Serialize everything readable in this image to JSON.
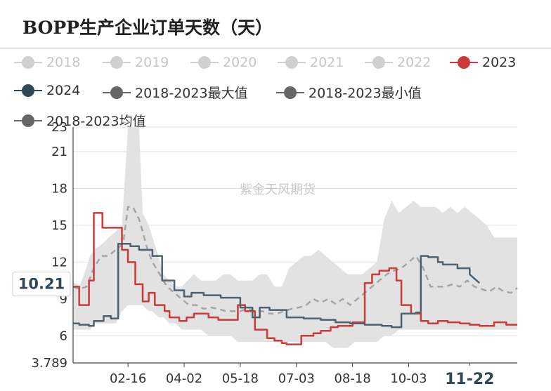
{
  "title": "BOPP生产企业订单天数（天）",
  "watermark": "紫金天风期货",
  "legend": [
    {
      "name": "2018",
      "color": "#d0d0d0",
      "active": false
    },
    {
      "name": "2019",
      "color": "#d0d0d0",
      "active": false
    },
    {
      "name": "2020",
      "color": "#d0d0d0",
      "active": false
    },
    {
      "name": "2021",
      "color": "#d0d0d0",
      "active": false
    },
    {
      "name": "2022",
      "color": "#d0d0d0",
      "active": false
    },
    {
      "name": "2023",
      "color": "#cc3b3b",
      "active": true
    },
    {
      "name": "2024",
      "color": "#2f4858",
      "active": true
    },
    {
      "name": "2018-2023最大值",
      "color": "#666666",
      "active": true
    },
    {
      "name": "2018-2023最小值",
      "color": "#666666",
      "active": true
    },
    {
      "name": "2018-2023均值",
      "color": "#666666",
      "active": true
    }
  ],
  "chart_data": {
    "type": "line",
    "title": "BOPP生产企业订单天数（天）",
    "ylim": [
      3.789,
      23
    ],
    "yticks": [
      "23",
      "21",
      "18",
      "15",
      "12",
      "9",
      "6",
      "3.789"
    ],
    "ytick_values": [
      23,
      21,
      18,
      15,
      12,
      9,
      6,
      3.789
    ],
    "xticks": [
      "02-16",
      "04-02",
      "05-18",
      "07-03",
      "08-18",
      "10-03",
      "11-22"
    ],
    "xtick_days": [
      46,
      92,
      138,
      184,
      230,
      276,
      326
    ],
    "xlim": [
      1,
      365
    ],
    "y_marker": "10.21",
    "x_marker": "11-22",
    "grid": "horizontal",
    "legend_position": "top",
    "band": {
      "x": [
        1,
        6,
        10,
        15,
        18,
        25,
        30,
        36,
        41,
        46,
        50,
        55,
        58,
        63,
        66,
        71,
        75,
        80,
        85,
        90,
        95,
        100,
        106,
        112,
        118,
        124,
        130,
        136,
        142,
        148,
        154,
        160,
        166,
        172,
        178,
        184,
        190,
        196,
        202,
        208,
        214,
        220,
        226,
        232,
        238,
        244,
        250,
        256,
        262,
        268,
        274,
        280,
        286,
        292,
        298,
        304,
        310,
        316,
        322,
        328,
        334,
        340,
        346,
        352,
        358,
        365
      ],
      "upper": [
        10.5,
        10,
        11,
        12.5,
        13,
        13.5,
        14,
        14.5,
        15,
        23,
        23,
        23,
        16,
        15,
        14,
        12.5,
        11,
        10.5,
        10,
        10,
        10.5,
        11,
        10.5,
        10.5,
        10.5,
        11,
        11,
        10.5,
        10.5,
        10.5,
        11,
        11,
        10,
        10,
        11.5,
        12,
        12.5,
        12.5,
        13,
        12.5,
        12,
        11.5,
        11,
        11,
        11,
        11.5,
        12,
        15.5,
        17,
        16,
        16.5,
        17,
        16.5,
        16.5,
        16.5,
        16,
        16.5,
        16,
        16.5,
        16,
        15.5,
        15,
        14,
        14,
        14,
        14
      ],
      "lower": [
        6.5,
        6.5,
        6.5,
        6.5,
        7,
        7,
        7,
        7,
        8,
        8.5,
        8.5,
        8.5,
        8.5,
        8,
        8,
        7.5,
        7.5,
        7,
        7,
        6.5,
        6.5,
        6.5,
        6.5,
        6,
        6,
        6,
        6,
        5.5,
        5.5,
        5.5,
        5.5,
        5.5,
        5.5,
        5.5,
        5.5,
        5.5,
        5.5,
        5.5,
        5.5,
        5.5,
        5,
        5,
        5,
        5.5,
        5.5,
        5.5,
        5.5,
        6,
        6,
        6.5,
        6.5,
        6.5,
        6.5,
        6.5,
        6.5,
        6.5,
        6.5,
        6.5,
        6.5,
        6.5,
        6.5,
        6.5,
        6.5,
        6.5,
        6.5,
        6.5
      ]
    },
    "series": [
      {
        "name": "2018-2023均值",
        "color": "#a6a6a6",
        "dashed": true,
        "x": [
          1,
          6,
          12,
          18,
          24,
          30,
          36,
          42,
          46,
          50,
          55,
          58,
          62,
          66,
          72,
          78,
          84,
          90,
          96,
          102,
          108,
          114,
          120,
          126,
          132,
          138,
          144,
          150,
          156,
          162,
          168,
          174,
          180,
          186,
          192,
          198,
          204,
          210,
          216,
          222,
          228,
          234,
          240,
          246,
          252,
          258,
          264,
          270,
          276,
          282,
          288,
          294,
          300,
          306,
          312,
          318,
          324,
          330,
          336,
          342,
          348,
          354,
          360,
          365
        ],
        "y": [
          10,
          9.8,
          10,
          11.5,
          12.5,
          12.5,
          13,
          13.5,
          16.5,
          16.5,
          15.5,
          14.5,
          13,
          12,
          11,
          10,
          9.5,
          9,
          8.5,
          8.5,
          8.2,
          8.3,
          8.2,
          8,
          8,
          8,
          8.2,
          8,
          8,
          7.8,
          7.8,
          8,
          8.2,
          8.3,
          8.5,
          9,
          8.7,
          9,
          8.6,
          9,
          8.5,
          9,
          9.5,
          10,
          10.5,
          11,
          11.3,
          11.5,
          12,
          12.5,
          11.5,
          10,
          10,
          10,
          10.2,
          10,
          10.5,
          10,
          9.8,
          9.6,
          10,
          9.6,
          9.5,
          9.9
        ]
      },
      {
        "name": "2023",
        "color": "#cc3b3b",
        "dashed": false,
        "x": [
          1,
          6,
          6,
          14,
          14,
          18,
          18,
          25,
          25,
          41,
          41,
          46,
          46,
          52,
          52,
          58,
          58,
          63,
          63,
          68,
          68,
          76,
          76,
          80,
          80,
          88,
          88,
          94,
          94,
          100,
          100,
          112,
          112,
          120,
          120,
          136,
          136,
          142,
          142,
          150,
          150,
          160,
          160,
          166,
          166,
          172,
          172,
          176,
          176,
          188,
          188,
          198,
          198,
          204,
          204,
          212,
          212,
          218,
          218,
          226,
          226,
          230,
          230,
          240,
          240,
          246,
          246,
          252,
          252,
          260,
          260,
          266,
          266,
          270,
          270,
          278,
          278,
          286,
          286,
          292,
          292,
          300,
          300,
          308,
          308,
          318,
          318,
          326,
          326,
          334,
          334,
          340,
          340,
          346,
          346,
          356,
          356,
          365
        ],
        "y": [
          10,
          10,
          8.5,
          8.5,
          10.5,
          10.5,
          16,
          16,
          14.8,
          14.8,
          13,
          13,
          12,
          12,
          10.2,
          10.2,
          8.8,
          8.8,
          9.5,
          9.5,
          8.5,
          8.5,
          8,
          8,
          7.5,
          7.5,
          7.2,
          7.2,
          7.5,
          7.5,
          7.8,
          7.8,
          7.5,
          7.5,
          7.3,
          7.3,
          8.5,
          8.5,
          8,
          8,
          6.5,
          6.5,
          5.8,
          5.8,
          5.6,
          5.6,
          5.4,
          5.4,
          5.3,
          5.3,
          6,
          6,
          6.2,
          6.2,
          6.4,
          6.4,
          6.7,
          6.7,
          6.8,
          6.8,
          6.8,
          6.8,
          7.1,
          7.1,
          10.3,
          10.3,
          11,
          11,
          11.3,
          11.3,
          11.5,
          11.5,
          10.5,
          10.5,
          8.5,
          8.5,
          7.8,
          7.8,
          7.2,
          7.2,
          7.0,
          7.0,
          7.2,
          7.2,
          7.1,
          7.1,
          7.0,
          7.0,
          6.9,
          6.9,
          6.8,
          6.8,
          6.8,
          6.8,
          7.1,
          7.1,
          6.9,
          6.9
        ]
      },
      {
        "name": "2024",
        "color": "#4d6170",
        "dashed": false,
        "x": [
          1,
          6,
          6,
          14,
          14,
          18,
          18,
          26,
          26,
          32,
          32,
          38,
          38,
          48,
          48,
          55,
          55,
          66,
          66,
          74,
          74,
          84,
          84,
          92,
          92,
          98,
          98,
          108,
          108,
          122,
          122,
          138,
          138,
          148,
          148,
          154,
          154,
          162,
          162,
          176,
          176,
          190,
          190,
          204,
          204,
          216,
          216,
          228,
          228,
          240,
          240,
          254,
          254,
          262,
          262,
          270,
          270,
          282,
          282,
          286,
          286,
          292,
          292,
          300,
          300,
          304,
          304,
          316,
          316,
          326,
          326,
          334
        ],
        "y": [
          7,
          7,
          6.9,
          6.9,
          6.8,
          6.8,
          7.2,
          7.2,
          7.6,
          7.6,
          7.4,
          7.4,
          13.5,
          13.5,
          13.3,
          13.3,
          13,
          13,
          12.5,
          12.5,
          10.5,
          10.5,
          9.7,
          9.7,
          9.2,
          9.2,
          9.5,
          9.5,
          9.3,
          9.3,
          9.1,
          9.1,
          8.3,
          8.3,
          7.5,
          7.5,
          8.3,
          8.3,
          8.1,
          8.1,
          7.5,
          7.5,
          7.4,
          7.4,
          7.3,
          7.3,
          7.1,
          7.1,
          7.0,
          7.0,
          6.9,
          6.9,
          6.8,
          6.8,
          6.7,
          6.7,
          7.8,
          7.8,
          7.9,
          7.9,
          12.5,
          12.5,
          12.4,
          12.4,
          12,
          12,
          11.8,
          11.8,
          11.5,
          11.5,
          11,
          10.3
        ]
      }
    ]
  }
}
